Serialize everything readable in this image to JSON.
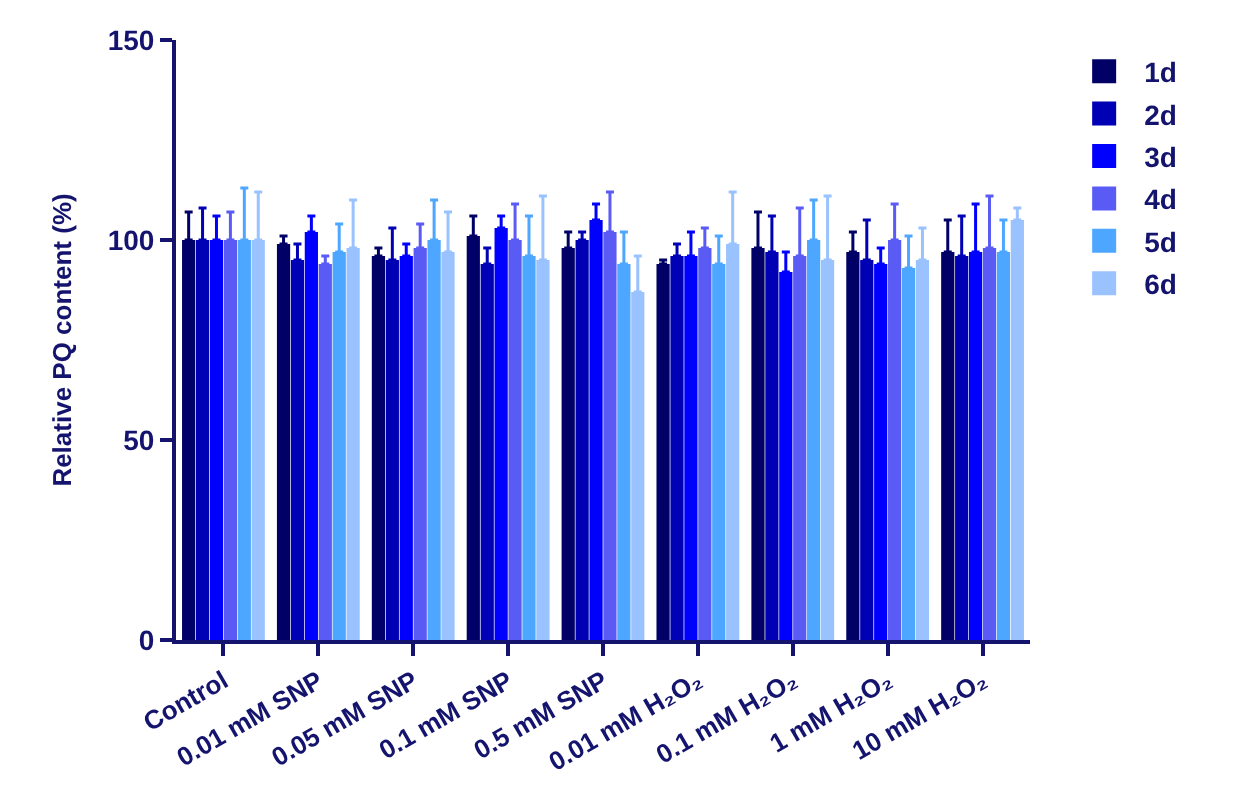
{
  "chart_data": {
    "type": "bar",
    "ylabel": "Relative PQ content (%)",
    "categories": [
      "Control",
      "0.01 mM SNP",
      "0.05 mM SNP",
      "0.1 mM SNP",
      "0.5 mM SNP",
      "0.01 mM H₂O₂",
      "0.1 mM H₂O₂",
      "1 mM H₂O₂",
      "10 mM H₂O₂"
    ],
    "series": [
      {
        "name": "1d",
        "color": "#000066",
        "values": [
          100,
          99,
          96,
          101,
          98,
          94,
          98,
          97,
          97
        ],
        "errors": [
          [
            100,
            107
          ],
          [
            99,
            101
          ],
          [
            96,
            98
          ],
          [
            101,
            106
          ],
          [
            98,
            102
          ],
          [
            94,
            95
          ],
          [
            98,
            107
          ],
          [
            97,
            102
          ],
          [
            97,
            105
          ]
        ]
      },
      {
        "name": "2d",
        "color": "#0000b4",
        "values": [
          100,
          95,
          95,
          94,
          100,
          96,
          97,
          95,
          96
        ],
        "errors": [
          [
            100,
            108
          ],
          [
            95,
            99
          ],
          [
            95,
            103
          ],
          [
            94,
            98
          ],
          [
            100,
            102
          ],
          [
            96,
            99
          ],
          [
            97,
            106
          ],
          [
            95,
            105
          ],
          [
            96,
            106
          ]
        ]
      },
      {
        "name": "3d",
        "color": "#0000ff",
        "values": [
          100,
          102,
          96,
          103,
          105,
          96,
          92,
          94,
          97
        ],
        "errors": [
          [
            100,
            106
          ],
          [
            102,
            106
          ],
          [
            96,
            99
          ],
          [
            103,
            106
          ],
          [
            105,
            109
          ],
          [
            96,
            102
          ],
          [
            92,
            97
          ],
          [
            94,
            98
          ],
          [
            97,
            109
          ]
        ]
      },
      {
        "name": "4d",
        "color": "#5a5af5",
        "values": [
          100,
          94,
          98,
          100,
          102,
          98,
          96,
          100,
          98
        ],
        "errors": [
          [
            100,
            107
          ],
          [
            94,
            96
          ],
          [
            98,
            104
          ],
          [
            100,
            109
          ],
          [
            102,
            112
          ],
          [
            98,
            103
          ],
          [
            96,
            108
          ],
          [
            100,
            109
          ],
          [
            98,
            111
          ]
        ]
      },
      {
        "name": "5d",
        "color": "#4da6ff",
        "values": [
          100,
          97,
          100,
          96,
          94,
          94,
          100,
          93,
          97
        ],
        "errors": [
          [
            100,
            113
          ],
          [
            97,
            104
          ],
          [
            100,
            110
          ],
          [
            96,
            106
          ],
          [
            94,
            102
          ],
          [
            94,
            101
          ],
          [
            100,
            110
          ],
          [
            93,
            101
          ],
          [
            97,
            105
          ]
        ]
      },
      {
        "name": "6d",
        "color": "#99c2ff",
        "values": [
          100,
          98,
          97,
          95,
          87,
          99,
          95,
          95,
          105
        ],
        "errors": [
          [
            100,
            112
          ],
          [
            98,
            110
          ],
          [
            97,
            107
          ],
          [
            95,
            111
          ],
          [
            87,
            96
          ],
          [
            99,
            112
          ],
          [
            95,
            111
          ],
          [
            95,
            103
          ],
          [
            105,
            108
          ]
        ]
      }
    ],
    "ylim": [
      0,
      150
    ],
    "yticks": [
      0,
      50,
      100,
      150
    ],
    "legend": "right"
  }
}
